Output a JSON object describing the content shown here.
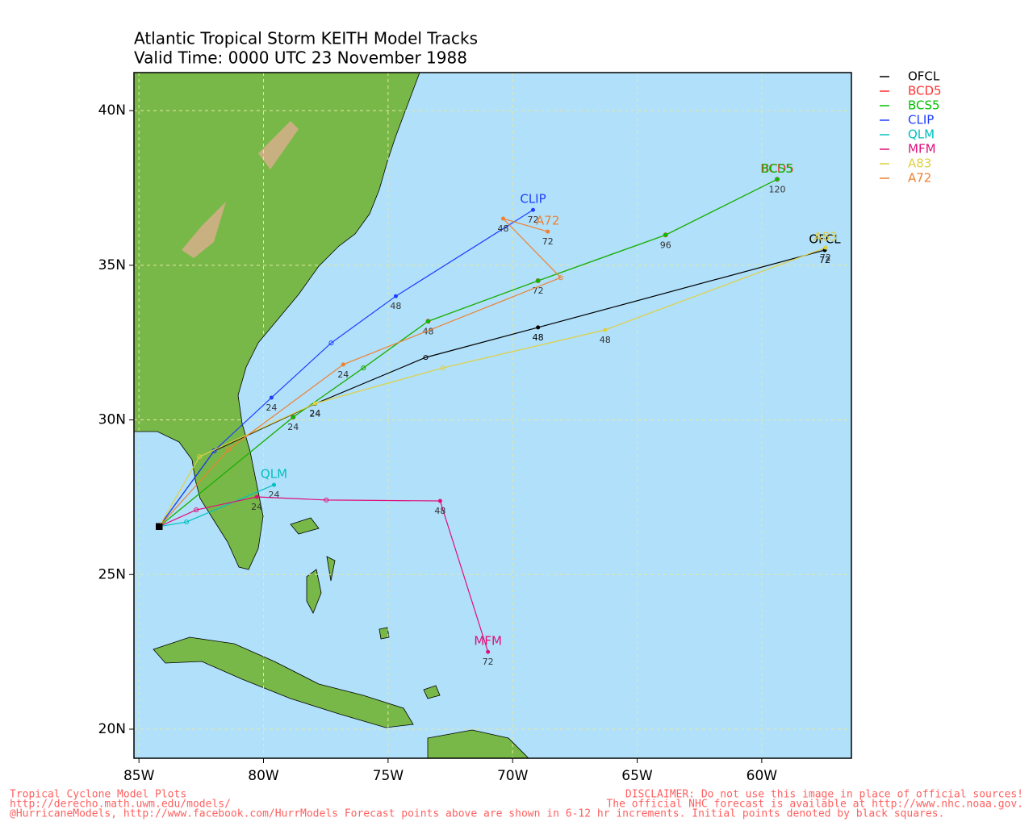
{
  "chart_data": {
    "type": "line",
    "title": "Atlantic Tropical Storm KEITH Model Tracks",
    "subtitle": "Valid Time: 0000 UTC 23 November 1988",
    "xlim": [
      -85.2,
      -56.4
    ],
    "ylim": [
      19.06,
      41.23
    ],
    "xticks": [
      {
        "value": -85,
        "label": "85W"
      },
      {
        "value": -80,
        "label": "80W"
      },
      {
        "value": -75,
        "label": "75W"
      },
      {
        "value": -70,
        "label": "70W"
      },
      {
        "value": -65,
        "label": "65W"
      },
      {
        "value": -60,
        "label": "60W"
      }
    ],
    "yticks": [
      {
        "value": 20,
        "label": "20N"
      },
      {
        "value": 25,
        "label": "25N"
      },
      {
        "value": 30,
        "label": "30N"
      },
      {
        "value": 35,
        "label": "35N"
      },
      {
        "value": 40,
        "label": "40N"
      }
    ],
    "grid": true,
    "legend": "right",
    "series": [
      {
        "name": "OFCL",
        "color": "#000000",
        "x": [
          -84.19,
          -81.98,
          -77.93,
          -73.49,
          -68.98,
          -57.47
        ],
        "values": [
          26.55,
          29.0,
          30.52,
          32.02,
          32.99,
          35.49
        ],
        "labels": [
          null,
          null,
          24,
          null,
          48,
          72
        ]
      },
      {
        "name": "BCD5",
        "color": "#ff3030",
        "x": [
          -84.19,
          -78.81,
          -75.99,
          -73.39,
          -68.98,
          -63.86,
          -59.38
        ],
        "values": [
          26.55,
          30.09,
          31.68,
          33.19,
          34.5,
          35.98,
          37.78
        ],
        "labels": [
          null,
          null,
          null,
          null,
          null,
          null,
          null
        ]
      },
      {
        "name": "BCS5",
        "color": "#00c000",
        "x": [
          -84.19,
          -78.81,
          -75.99,
          -73.39,
          -68.98,
          -63.86,
          -59.38
        ],
        "values": [
          26.55,
          30.09,
          31.68,
          33.19,
          34.5,
          35.98,
          37.78
        ],
        "labels": [
          null,
          24,
          null,
          48,
          72,
          96,
          120
        ]
      },
      {
        "name": "CLIP",
        "color": "#2040ff",
        "x": [
          -84.19,
          -81.98,
          -79.68,
          -77.28,
          -74.69,
          -69.18
        ],
        "values": [
          26.55,
          29.0,
          30.72,
          32.49,
          34.0,
          36.79
        ],
        "labels": [
          null,
          null,
          24,
          null,
          48,
          72
        ]
      },
      {
        "name": "QLM",
        "color": "#00c0c0",
        "x": [
          -84.19,
          -83.09,
          -79.58
        ],
        "values": [
          26.55,
          26.7,
          27.9
        ],
        "labels": [
          null,
          null,
          24
        ]
      },
      {
        "name": "MFM",
        "color": "#e0107a",
        "x": [
          -84.19,
          -82.7,
          -80.27,
          -77.48,
          -72.91,
          -70.99
        ],
        "values": [
          26.55,
          27.09,
          27.51,
          27.41,
          27.38,
          22.5
        ],
        "labels": [
          null,
          null,
          24,
          null,
          48,
          72
        ]
      },
      {
        "name": "A83",
        "color": "#e0d040",
        "x": [
          -84.19,
          -82.57,
          -77.93,
          -72.81,
          -66.29,
          -57.44
        ],
        "values": [
          26.55,
          28.81,
          30.53,
          31.68,
          32.91,
          35.57
        ],
        "labels": [
          null,
          null,
          24,
          null,
          48,
          72
        ]
      },
      {
        "name": "A72",
        "color": "#f08030",
        "x": [
          -84.19,
          -81.4,
          -76.8,
          -68.07,
          -70.38,
          -68.59
        ],
        "values": [
          26.55,
          29.05,
          31.79,
          34.6,
          36.51,
          36.09
        ],
        "labels": [
          null,
          null,
          24,
          null,
          48,
          72
        ]
      }
    ]
  },
  "footer": {
    "left": [
      "Tropical Cyclone Model Plots",
      "http://derecho.math.uwm.edu/models/",
      "@HurricaneModels, http://www.facebook.com/HurrModels  Forecast points above are shown in 6-12 hr increments. Initial points denoted by black squares."
    ],
    "right": [
      "DISCLAIMER: Do not use this image in place of official sources!",
      "The official NHC forecast is available at http://www.nhc.noaa.gov."
    ]
  }
}
